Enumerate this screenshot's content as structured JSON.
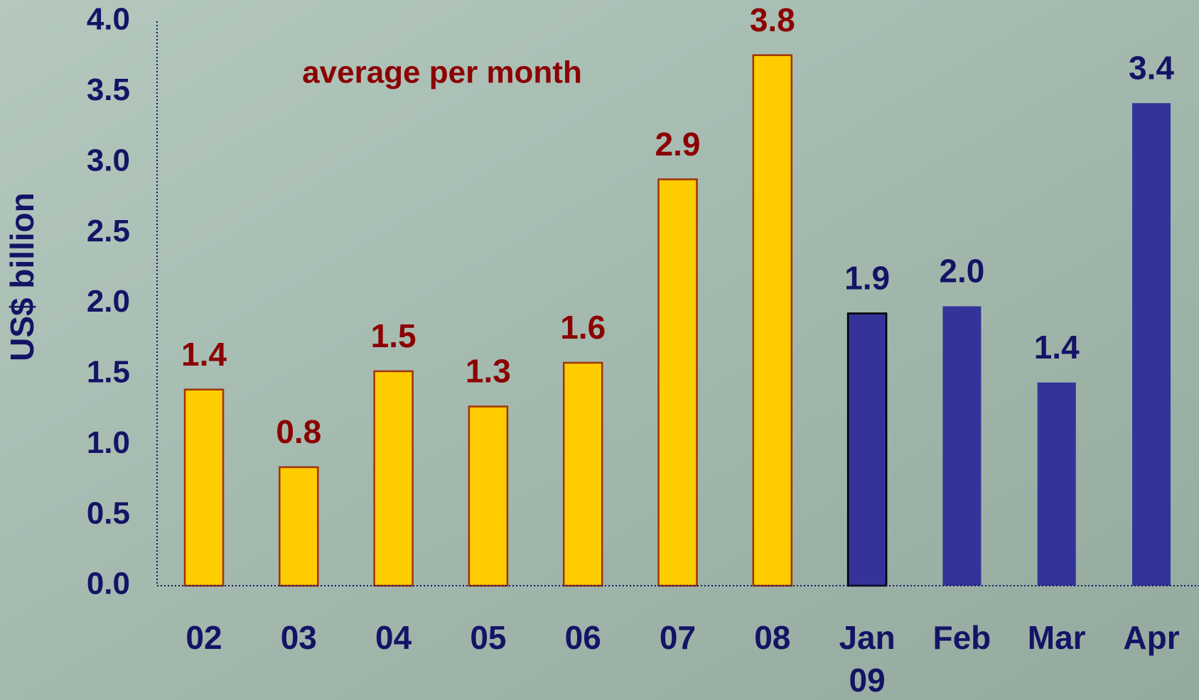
{
  "chart_data": {
    "type": "bar",
    "y_label": "US$ billion",
    "annotation": "average per month",
    "categories": [
      "02",
      "03",
      "04",
      "05",
      "06",
      "07",
      "08",
      "Jan\n09",
      "Feb",
      "Mar",
      "Apr"
    ],
    "values": [
      1.39,
      0.84,
      1.52,
      1.27,
      1.58,
      2.88,
      3.76,
      1.93,
      1.98,
      1.44,
      3.42
    ],
    "value_labels": [
      "1.4",
      "0.8",
      "1.5",
      "1.3",
      "1.6",
      "2.9",
      "3.8",
      "1.9",
      "2.0",
      "1.4",
      "3.4"
    ],
    "colors": [
      "#ffcc00",
      "#ffcc00",
      "#ffcc00",
      "#ffcc00",
      "#ffcc00",
      "#ffcc00",
      "#ffcc00",
      "#333399",
      "#333399",
      "#333399",
      "#333399"
    ],
    "label_colors": [
      "#8b0000",
      "#8b0000",
      "#8b0000",
      "#8b0000",
      "#8b0000",
      "#8b0000",
      "#8b0000",
      "#141466",
      "#141466",
      "#141466",
      "#141466"
    ],
    "ylim": [
      0,
      4
    ],
    "yticks": [
      {
        "value": 0,
        "label": "0.0"
      },
      {
        "value": 0.5,
        "label": "0.5"
      },
      {
        "value": 1,
        "label": "1.0"
      },
      {
        "value": 1.5,
        "label": "1.5"
      },
      {
        "value": 2,
        "label": "2.0"
      },
      {
        "value": 2.5,
        "label": "2.5"
      },
      {
        "value": 3,
        "label": "3.0"
      },
      {
        "value": 3.5,
        "label": "3.5"
      },
      {
        "value": 4,
        "label": "4.0"
      }
    ],
    "grid": false
  }
}
